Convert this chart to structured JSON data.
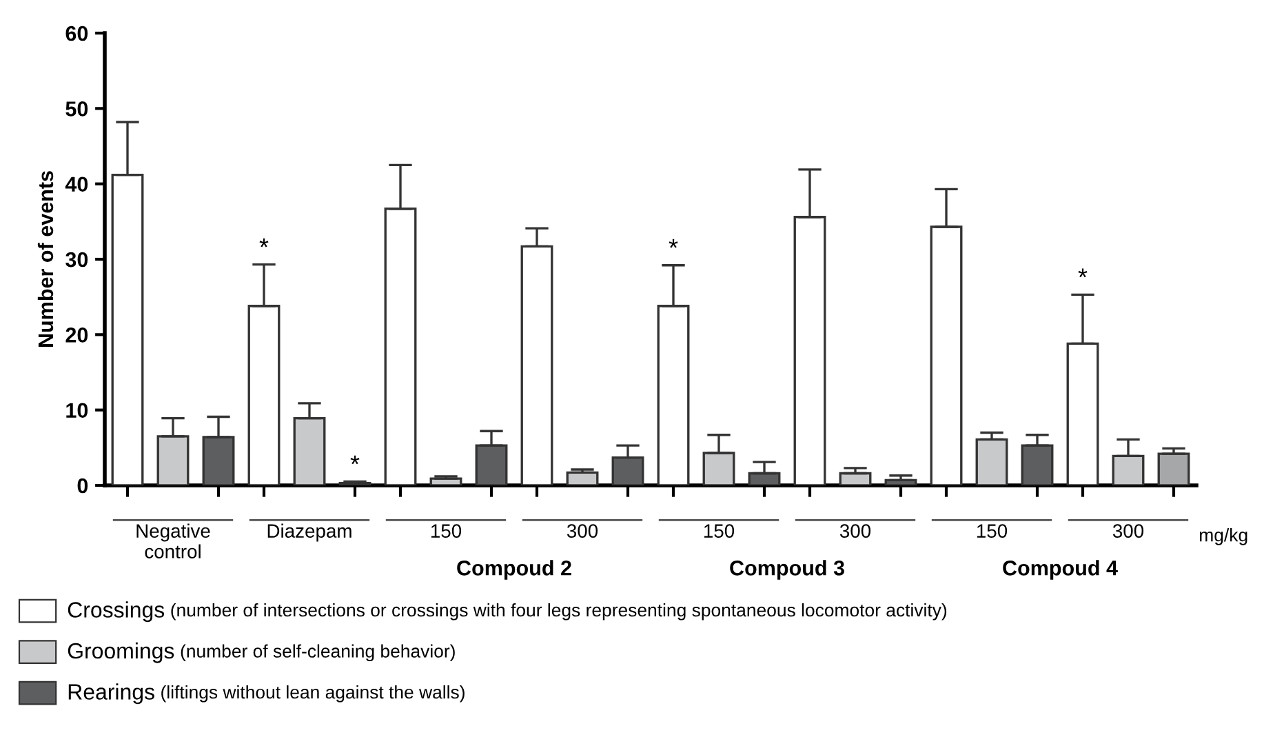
{
  "chart_data": {
    "type": "bar",
    "ylabel": "Number of events",
    "categories": [
      "Negative control",
      "Diazepam",
      "150",
      "300",
      "150",
      "300",
      "150",
      "300"
    ],
    "series": [
      {
        "name": "Crossings (number of intersections or crossings with four legs representing spontaneous locomotor activity)",
        "color": "#ffffff",
        "values": [
          41.2,
          23.8,
          36.7,
          31.7,
          23.8,
          35.6,
          34.3,
          18.8
        ],
        "errors": [
          [
            41.2,
            48.2
          ],
          [
            23.8,
            29.3
          ],
          [
            36.7,
            42.5
          ],
          [
            31.7,
            34.1
          ],
          [
            23.8,
            29.2
          ],
          [
            35.6,
            41.9
          ],
          [
            34.3,
            39.3
          ],
          [
            18.8,
            25.3
          ]
        ],
        "value_labels": [
          null,
          "*",
          null,
          null,
          "*",
          null,
          null,
          "*"
        ]
      },
      {
        "name": "Groomings (number of self-cleaning behavior)",
        "color": "#c8c9cb",
        "values": [
          6.5,
          8.9,
          0.9,
          1.7,
          4.3,
          1.6,
          6.1,
          3.9
        ],
        "errors": [
          [
            6.5,
            8.9
          ],
          [
            8.9,
            10.9
          ],
          [
            0.9,
            1.2
          ],
          [
            1.7,
            2.1
          ],
          [
            4.3,
            6.7
          ],
          [
            1.6,
            2.3
          ],
          [
            6.1,
            7.0
          ],
          [
            3.9,
            6.1
          ]
        ]
      },
      {
        "name": "Rearings (liftings without lean against the walls)",
        "color": "#5d5e60",
        "colors": [
          "#5d5e60",
          "#5d5e60",
          "#5d5e60",
          "#5d5e60",
          "#5d5e60",
          "#5d5e60",
          "#5d5e60",
          "#a6a7a9"
        ],
        "values": [
          6.4,
          0.3,
          5.3,
          3.7,
          1.6,
          0.7,
          5.3,
          4.2
        ],
        "errors": [
          [
            6.4,
            9.1
          ],
          [
            0.3,
            0.5
          ],
          [
            5.3,
            7.2
          ],
          [
            3.7,
            5.3
          ],
          [
            1.6,
            3.1
          ],
          [
            0.7,
            1.3
          ],
          [
            5.3,
            6.7
          ],
          [
            4.2,
            4.9
          ]
        ],
        "value_labels": [
          null,
          "*",
          null,
          null,
          null,
          null,
          null,
          null
        ]
      }
    ],
    "ylim": [
      0,
      60
    ],
    "yticks": [
      0,
      10,
      20,
      30,
      40,
      50,
      60
    ],
    "grid": false,
    "legend": "bottom",
    "annotations": [
      "Compoud 2",
      "Compoud 3",
      "Compoud 4",
      "mg/kg"
    ]
  }
}
